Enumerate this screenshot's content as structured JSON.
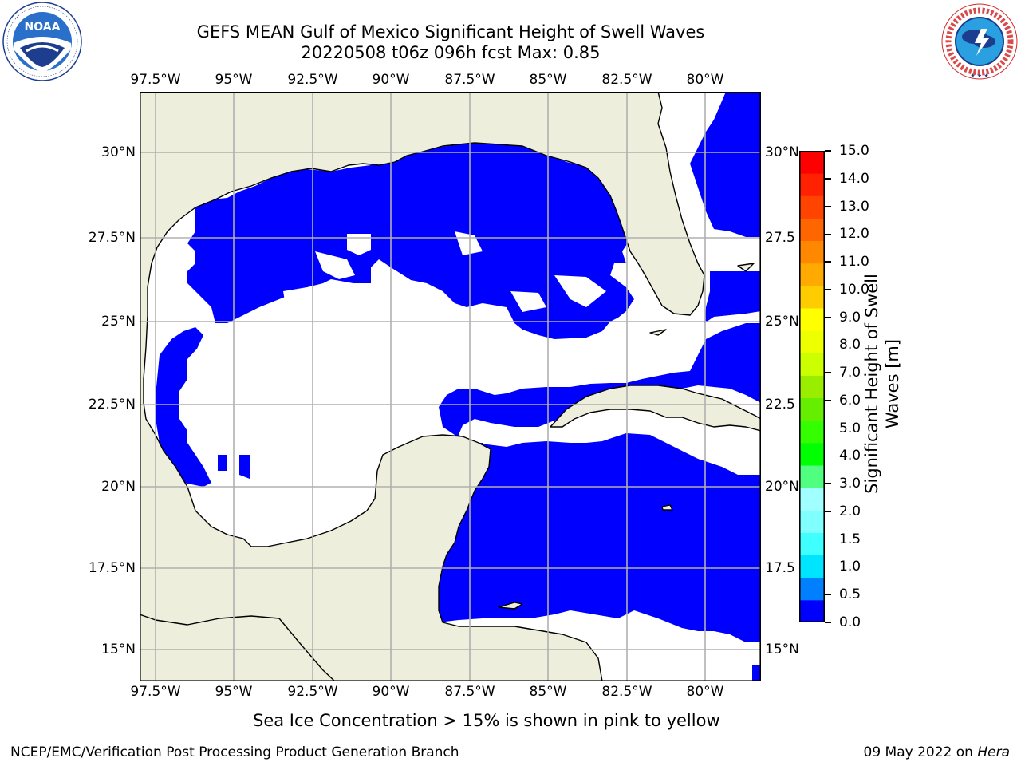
{
  "header": {
    "title_line1": "GEFS MEAN Gulf of Mexico Significant Height of Swell Waves",
    "title_line2": "20220508 t06z 096h fcst   Max: 0.85"
  },
  "logos": {
    "left": {
      "name": "NOAA",
      "ring_text": "NATIONAL OCEANIC AND ATMOSPHERIC ADMINISTRATION · U.S. DEPARTMENT OF COMMERCE"
    },
    "right": {
      "name": "NATIONAL WEATHER SERVICE"
    }
  },
  "map": {
    "lon_labels": [
      "97.5°W",
      "95°W",
      "92.5°W",
      "90°W",
      "87.5°W",
      "85°W",
      "82.5°W",
      "80°W"
    ],
    "lat_labels_left": [
      "30°N",
      "27.5°N",
      "25°N",
      "22.5°N",
      "20°N",
      "17.5°N",
      "15°N"
    ],
    "lat_labels_right": [
      "30°N",
      "27.5",
      "25°N",
      "22.5",
      "20°N",
      "17.5",
      "15°N"
    ],
    "colors": {
      "land": "#eeeedd",
      "ocean_low": "#0000ff",
      "ocean_mid": "#0080ff",
      "grid": "#b0b0b0"
    }
  },
  "colorbar": {
    "label_line1": "Significant Height of Swell",
    "label_line2": "Waves [m]",
    "ticks": [
      "15.0",
      "14.0",
      "13.0",
      "12.0",
      "11.0",
      "10.0",
      "9.0",
      "8.0",
      "7.0",
      "6.0",
      "5.0",
      "4.0",
      "3.0",
      "2.0",
      "1.5",
      "1.0",
      "0.5",
      "0.0"
    ],
    "colors": [
      "#0000ff",
      "#0080ff",
      "#00e5ff",
      "#40ffff",
      "#80ffff",
      "#a0ffff",
      "#50ff80",
      "#00ff00",
      "#33ff00",
      "#66ee00",
      "#99ee00",
      "#ccff00",
      "#eeff00",
      "#ffff00",
      "#ffcc00",
      "#ffaa00",
      "#ff8800",
      "#ff6600",
      "#ff4400",
      "#ff2200",
      "#ff0000"
    ]
  },
  "footer": {
    "note": "Sea Ice Concentration > 15% is shown in pink to yellow",
    "left": "NCEP/EMC/Verification Post Processing Product Generation Branch",
    "right_prefix": "09 May 2022 on ",
    "right_italic": "Hera"
  }
}
